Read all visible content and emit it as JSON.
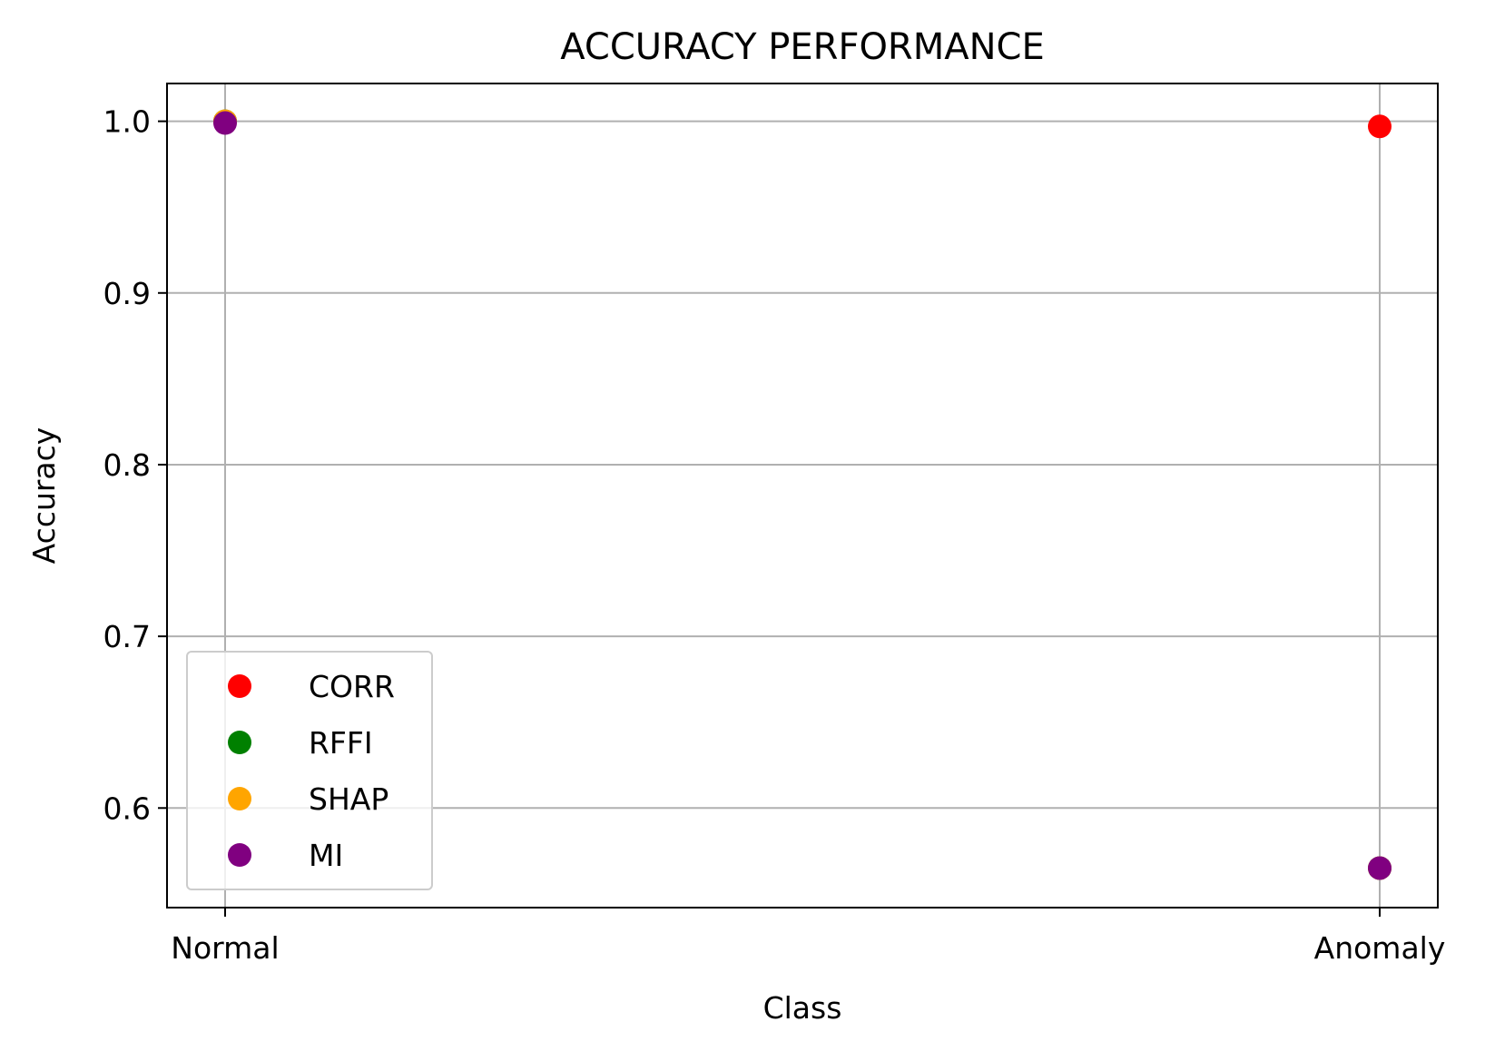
{
  "chart_data": {
    "type": "scatter",
    "title": "ACCURACY PERFORMANCE",
    "xlabel": "Class",
    "ylabel": "Accuracy",
    "categories": [
      "Normal",
      "Anomaly"
    ],
    "ylim": [
      0.542,
      1.022
    ],
    "yticks": [
      0.6,
      0.7,
      0.8,
      0.9,
      1.0
    ],
    "ytick_labels": [
      "0.6",
      "0.7",
      "0.8",
      "0.9",
      "1.0"
    ],
    "grid": true,
    "legend_position": "lower-left",
    "series": [
      {
        "name": "CORR",
        "color": "#ff0000",
        "values": [
          1.0,
          0.997
        ]
      },
      {
        "name": "RFFI",
        "color": "#008000",
        "values": [
          1.0,
          0.565
        ]
      },
      {
        "name": "SHAP",
        "color": "#ffa500",
        "values": [
          1.0,
          0.565
        ]
      },
      {
        "name": "MI",
        "color": "#800080",
        "values": [
          0.999,
          0.565
        ]
      }
    ]
  }
}
